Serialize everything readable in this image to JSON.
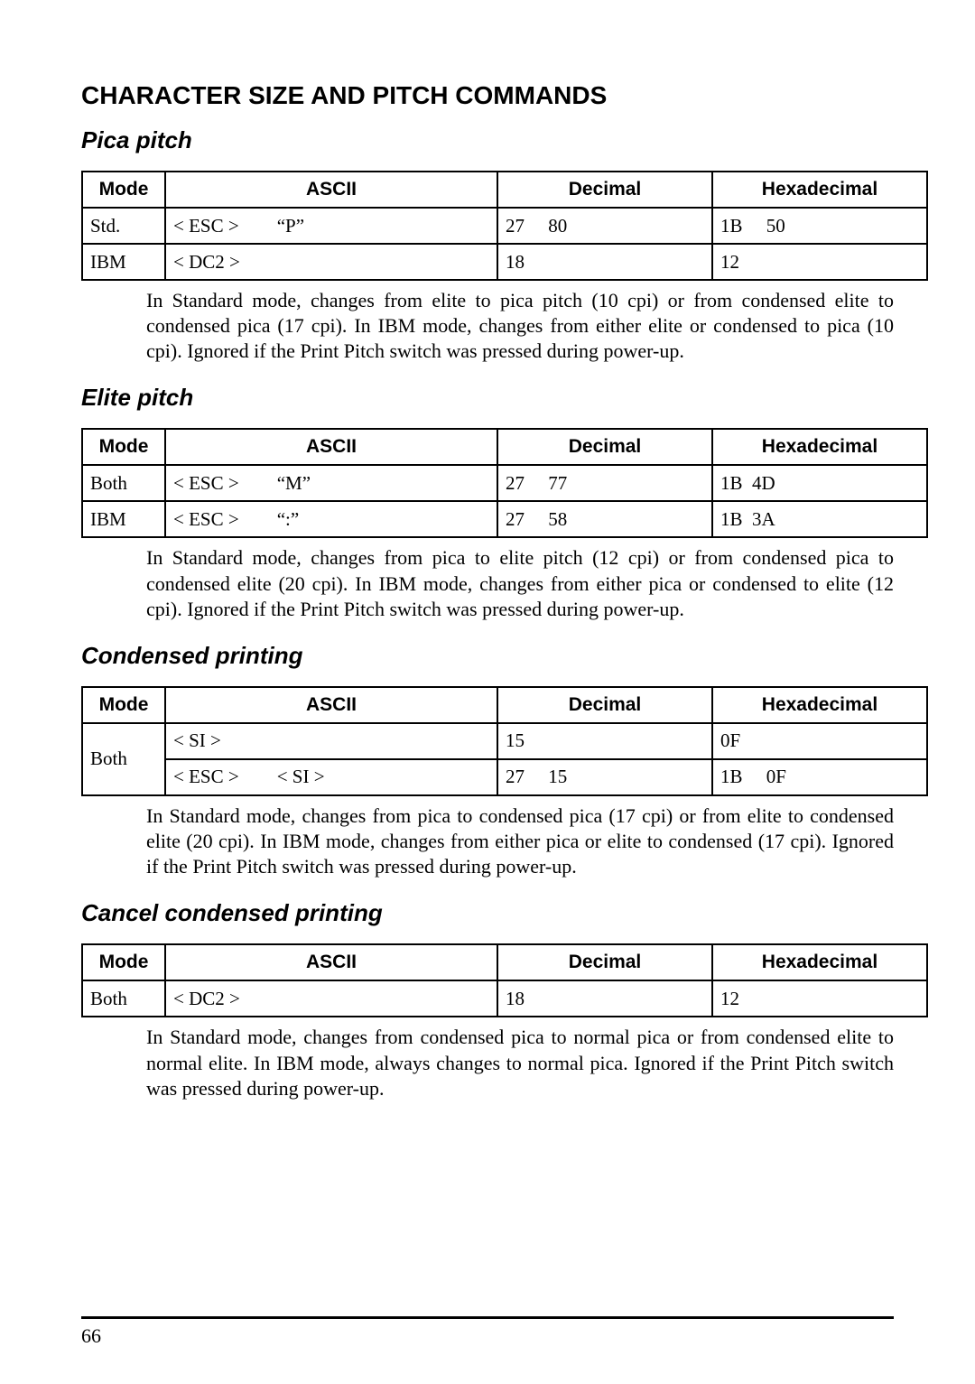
{
  "title": "CHARACTER SIZE AND PITCH COMMANDS",
  "page_number": "66",
  "table_headers": {
    "mode": "Mode",
    "ascii": "ASCII",
    "decimal": "Decimal",
    "hex": "Hexadecimal"
  },
  "sections": [
    {
      "title": "Pica pitch",
      "rows": [
        {
          "mode": "Std.",
          "ascii": "< ESC >  “P”",
          "decimal": "27  80",
          "hex": "1B  50"
        },
        {
          "mode": "IBM",
          "ascii": "< DC2 >",
          "decimal": "18",
          "hex": "12"
        }
      ],
      "desc": "In Standard mode, changes from elite to pica pitch (10 cpi) or from condensed elite to condensed pica (17 cpi). In IBM mode, changes from either elite or condensed to pica (10 cpi). Ignored if the Print Pitch switch was pressed during power-up."
    },
    {
      "title": "Elite pitch",
      "rows": [
        {
          "mode": "Both",
          "ascii": "< ESC >  “M”",
          "decimal": "27  77",
          "hex": "1B  4D"
        },
        {
          "mode": "IBM",
          "ascii": "< ESC >  “:”",
          "decimal": "27  58",
          "hex": "1B  3A"
        }
      ],
      "desc": "In Standard mode, changes from pica to elite pitch (12 cpi) or from condensed pica to condensed elite (20 cpi). In IBM mode, changes from either pica or condensed to elite (12 cpi). Ignored if the Print Pitch switch was pressed during power-up."
    },
    {
      "title": "Condensed printing",
      "rowspan_mode": "Both",
      "rows": [
        {
          "ascii": "< SI >",
          "decimal": "15",
          "hex": "0F"
        },
        {
          "ascii": "< ESC >  < SI >",
          "decimal": "27  15",
          "hex": "1B  0F"
        }
      ],
      "desc": "In Standard mode, changes from pica to condensed pica (17 cpi) or from elite to condensed elite (20 cpi). In IBM mode, changes from either pica or elite to condensed (17 cpi). Ignored if the Print Pitch switch was pressed during power-up."
    },
    {
      "title": "Cancel condensed printing",
      "rows": [
        {
          "mode": "Both",
          "ascii": "< DC2 >",
          "decimal": "18",
          "hex": "12"
        }
      ],
      "desc": "In Standard mode, changes from condensed pica to normal pica or from condensed elite to normal elite. In IBM mode, always changes to normal pica. Ignored if the Print Pitch switch was pressed during power-up."
    }
  ],
  "styles": {
    "background": "#ffffff",
    "text_color": "#000000",
    "border_color": "#000000",
    "title_fontsize": 28,
    "section_fontsize": 26,
    "body_fontsize": 22,
    "table_fontsize": 21,
    "col_widths": {
      "mode": 74,
      "ascii": 350,
      "decimal": 220,
      "hex": 220
    }
  }
}
